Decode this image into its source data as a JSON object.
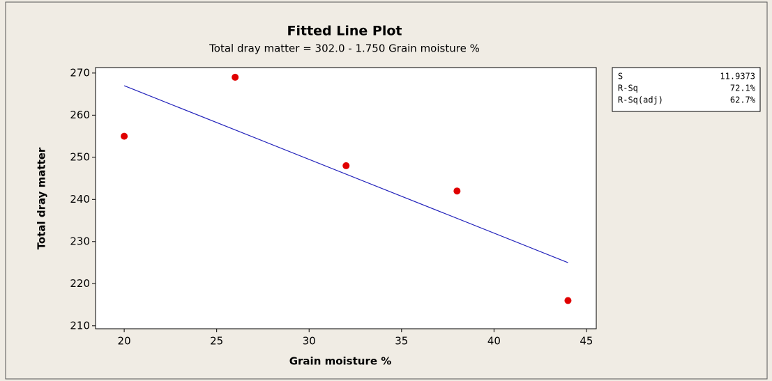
{
  "chart_data": {
    "type": "scatter",
    "title": "Fitted Line Plot",
    "subtitle": "Total dray matter =  302.0 - 1.750 Grain moisture %",
    "x_label": "Grain moisture %",
    "y_label": "Total dray matter",
    "series": [
      {
        "name": "Total dray matter",
        "color": "#e00000",
        "x": [
          20,
          26,
          32,
          38,
          44
        ],
        "values": [
          255,
          269,
          248,
          242,
          216
        ]
      }
    ],
    "fit_line": {
      "color": "#2222bb",
      "x": [
        20,
        44
      ],
      "values": [
        267,
        225
      ]
    },
    "stats": [
      {
        "label": "S",
        "value": "11.9373"
      },
      {
        "label": "R-Sq",
        "value": "72.1%"
      },
      {
        "label": "R-Sq(adj)",
        "value": "62.7%"
      }
    ],
    "xlim": [
      18.45,
      45.53
    ],
    "xticks": [
      20,
      25,
      30,
      35,
      40,
      45
    ],
    "ylim": [
      209.3,
      271.3
    ],
    "yticks": [
      210,
      220,
      230,
      240,
      250,
      260,
      270
    ]
  }
}
